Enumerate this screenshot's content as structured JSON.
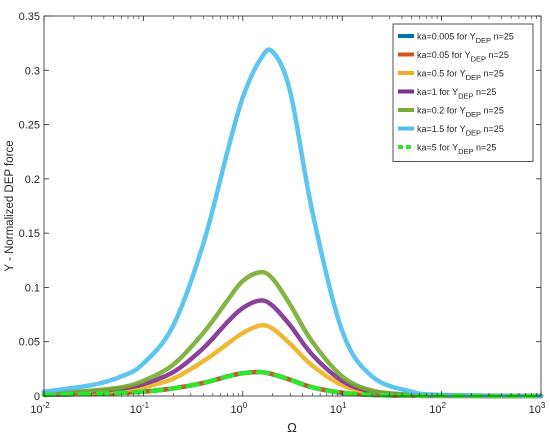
{
  "chart_data": {
    "type": "line",
    "title": "",
    "xlabel": "Ω",
    "ylabel": "Y - Normalized DEP force",
    "xscale": "log",
    "xlim": [
      0.01,
      1000
    ],
    "ylim": [
      0,
      0.35
    ],
    "grid": false,
    "legend_position": "top-right",
    "x_ticks": [
      {
        "v": 0.01,
        "base": "10",
        "exp": "-2"
      },
      {
        "v": 0.1,
        "base": "10",
        "exp": "-1"
      },
      {
        "v": 1,
        "base": "10",
        "exp": "0"
      },
      {
        "v": 10,
        "base": "10",
        "exp": "1"
      },
      {
        "v": 100,
        "base": "10",
        "exp": "2"
      },
      {
        "v": 1000,
        "base": "10",
        "exp": "3"
      }
    ],
    "y_ticks": [
      {
        "v": 0,
        "label": "0"
      },
      {
        "v": 0.05,
        "label": "0.05"
      },
      {
        "v": 0.1,
        "label": "0.1"
      },
      {
        "v": 0.15,
        "label": "0.15"
      },
      {
        "v": 0.2,
        "label": "0.2"
      },
      {
        "v": 0.25,
        "label": "0.25"
      },
      {
        "v": 0.3,
        "label": "0.3"
      },
      {
        "v": 0.35,
        "label": "0.35"
      }
    ],
    "x": [
      0.01,
      0.03,
      0.06,
      0.1,
      0.2,
      0.4,
      0.7,
      1.0,
      1.5,
      2.0,
      3.0,
      5.0,
      10,
      20,
      50,
      100,
      1000
    ],
    "series": [
      {
        "name_main": "ka=0.005 for Y",
        "name_sub": "DEP",
        "name_tail": " n=25",
        "color": "#0072bd",
        "dashed": false,
        "values": [
          0.001,
          0.002,
          0.003,
          0.004,
          0.007,
          0.012,
          0.018,
          0.021,
          0.022,
          0.02,
          0.015,
          0.008,
          0.003,
          0.001,
          0.0003,
          0.0001,
          0.0
        ]
      },
      {
        "name_main": "ka=0.05 for Y",
        "name_sub": "DEP",
        "name_tail": " n=25",
        "color": "#d95319",
        "dashed": false,
        "values": [
          0.001,
          0.002,
          0.003,
          0.004,
          0.007,
          0.012,
          0.018,
          0.021,
          0.022,
          0.02,
          0.015,
          0.008,
          0.003,
          0.001,
          0.0003,
          0.0001,
          0.0
        ]
      },
      {
        "name_main": "ka=0.5 for Y",
        "name_sub": "DEP",
        "name_tail": " n=25",
        "color": "#edb120",
        "dashed": false,
        "values": [
          0.001,
          0.003,
          0.005,
          0.008,
          0.016,
          0.032,
          0.048,
          0.058,
          0.065,
          0.062,
          0.048,
          0.028,
          0.01,
          0.003,
          0.001,
          0.0003,
          0.0
        ]
      },
      {
        "name_main": "ka=1 for Y",
        "name_sub": "DEP",
        "name_tail": " n=25",
        "color": "#7e2f8e",
        "dashed": false,
        "values": [
          0.002,
          0.004,
          0.007,
          0.011,
          0.022,
          0.044,
          0.068,
          0.081,
          0.088,
          0.083,
          0.065,
          0.038,
          0.014,
          0.004,
          0.001,
          0.0004,
          0.0
        ]
      },
      {
        "name_main": "ka=0.2 for Y",
        "name_sub": "DEP",
        "name_tail": " n=25",
        "color": "#77ac30",
        "dashed": false,
        "values": [
          0.002,
          0.005,
          0.008,
          0.014,
          0.029,
          0.058,
          0.088,
          0.106,
          0.114,
          0.108,
          0.084,
          0.05,
          0.018,
          0.005,
          0.001,
          0.0005,
          0.0
        ]
      },
      {
        "name_main": "ka=1.5 for Y",
        "name_sub": "DEP",
        "name_tail": " n=25",
        "color": "#4dbeee",
        "dashed": false,
        "values": [
          0.004,
          0.01,
          0.018,
          0.03,
          0.065,
          0.14,
          0.225,
          0.275,
          0.31,
          0.317,
          0.28,
          0.17,
          0.06,
          0.018,
          0.004,
          0.001,
          0.0
        ]
      },
      {
        "name_main": "ka=5 for Y",
        "name_sub": "DEP",
        "name_tail": " n=25",
        "color": "#2ee62e",
        "dashed": true,
        "values": [
          0.001,
          0.002,
          0.003,
          0.004,
          0.007,
          0.012,
          0.018,
          0.021,
          0.022,
          0.02,
          0.015,
          0.008,
          0.003,
          0.001,
          0.0003,
          0.0001,
          0.0
        ]
      }
    ]
  }
}
